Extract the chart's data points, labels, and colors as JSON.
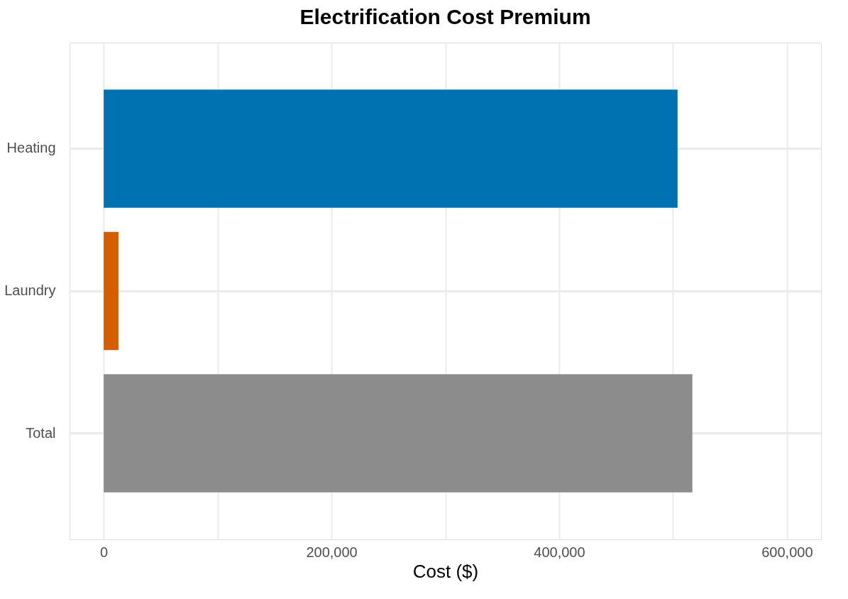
{
  "chart_data": {
    "type": "bar",
    "orientation": "horizontal",
    "title": "Electrification Cost Premium",
    "xlabel": "Cost ($)",
    "categories": [
      "Heating",
      "Laundry",
      "Total"
    ],
    "values": [
      504000,
      13000,
      517000
    ],
    "colors": [
      "#0072b2",
      "#d55e00",
      "#8c8c8c"
    ],
    "xlim": [
      -30000,
      630000
    ],
    "xticks": [
      0,
      {
        "value": 100000,
        "label": null
      },
      {
        "value": 200000,
        "label": "200,000"
      },
      {
        "value": 300000,
        "label": null
      },
      {
        "value": 400000,
        "label": "400,000"
      },
      {
        "value": 500000,
        "label": null
      },
      {
        "value": 600000,
        "label": "600,000"
      }
    ],
    "grid": true,
    "legend": false
  }
}
